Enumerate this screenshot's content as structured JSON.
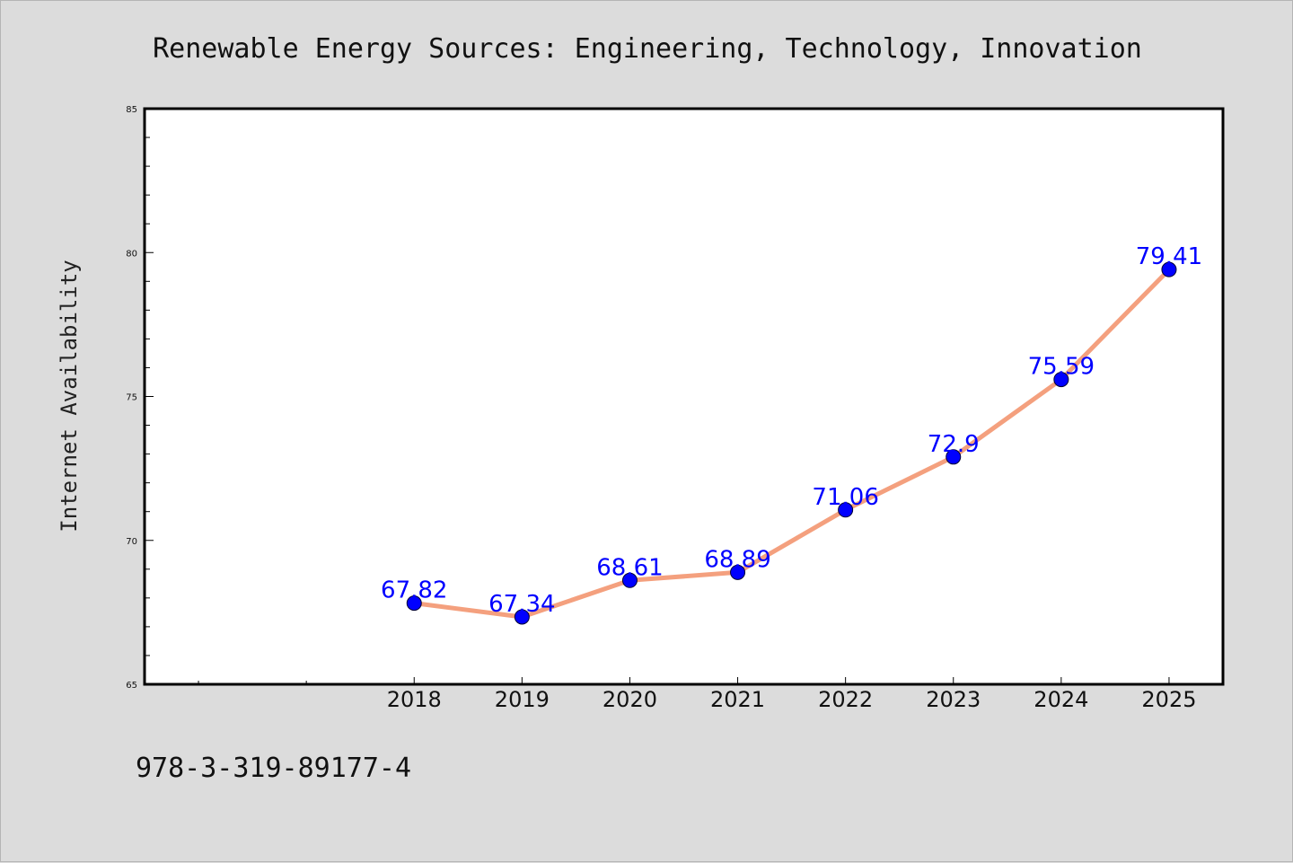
{
  "chart_data": {
    "type": "line",
    "title": "Renewable Energy Sources: Engineering, Technology, Innovation",
    "xlabel": "",
    "ylabel": "Internet Availability",
    "x": [
      "2018",
      "2019",
      "2020",
      "2021",
      "2022",
      "2023",
      "2024",
      "2025"
    ],
    "series": [
      {
        "values": [
          67.82,
          67.34,
          68.61,
          68.89,
          71.06,
          72.9,
          75.59,
          79.41
        ],
        "data_labels": [
          "67.82",
          "67.34",
          "68.61",
          "68.89",
          "71.06",
          "72.9",
          "75.59",
          "79.41"
        ],
        "line_color": "#f4a07e",
        "marker_color": "#0000ff"
      }
    ],
    "xlim": [
      2015.5,
      2025.5
    ],
    "ylim": [
      65,
      85
    ],
    "y_ticks": [
      65,
      70,
      75,
      80,
      85
    ],
    "y_tick_labels": [
      "65",
      "70",
      "75",
      "80",
      "85"
    ],
    "y_minor_step": 1,
    "x_extra_ticks": [
      2016,
      2017
    ],
    "grid": false,
    "legend": "none",
    "background_color": "#dcdcdc",
    "plot_background_color": "#ffffff",
    "label_color": "#0000ff"
  },
  "footer": {
    "isbn": "978-3-319-89177-4"
  }
}
